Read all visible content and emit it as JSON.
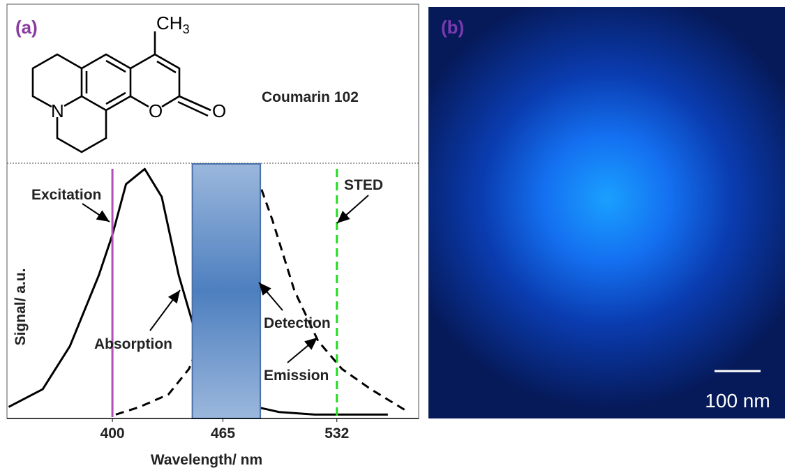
{
  "panel_a_label": "(a)",
  "panel_b_label": "(b)",
  "molecule": {
    "name": "Coumarin 102",
    "methyl": "CH",
    "methyl_sub": "3",
    "nitrogen": "N",
    "ring_oxygen": "O",
    "carbonyl_oxygen": "O"
  },
  "chart_data": {
    "type": "line",
    "xlabel": "Wavelength/ nm",
    "ylabel": "Signal/ a.u.",
    "xlim": [
      338,
      576
    ],
    "xticks": [
      400,
      465,
      532
    ],
    "ylim": [
      0,
      1
    ],
    "series": [
      {
        "name": "Absorption",
        "color": "#000000",
        "dashed": false,
        "x": [
          339,
          359,
          375,
          392,
          400,
          408,
          419,
          429,
          439,
          449,
          462,
          478,
          498,
          519,
          562
        ],
        "values": [
          0.04,
          0.11,
          0.28,
          0.56,
          0.72,
          0.92,
          0.98,
          0.87,
          0.56,
          0.33,
          0.15,
          0.05,
          0.02,
          0.01,
          0.01
        ]
      },
      {
        "name": "Emission",
        "color": "#000000",
        "dashed": true,
        "x": [
          402,
          416,
          433,
          445,
          457,
          474,
          485,
          494,
          507,
          521,
          535,
          552,
          574
        ],
        "values": [
          0.01,
          0.04,
          0.09,
          0.19,
          0.39,
          0.72,
          0.95,
          0.78,
          0.5,
          0.3,
          0.19,
          0.11,
          0.02
        ]
      }
    ],
    "markers": [
      {
        "name": "Excitation",
        "x": 400,
        "color": "#b04fb5",
        "dashed": false
      },
      {
        "name": "STED",
        "x": 532,
        "color": "#22dd22",
        "dashed": true
      }
    ],
    "band": {
      "name": "Detection",
      "range": [
        447,
        487
      ]
    }
  },
  "scale_bar_label": "100 nm"
}
